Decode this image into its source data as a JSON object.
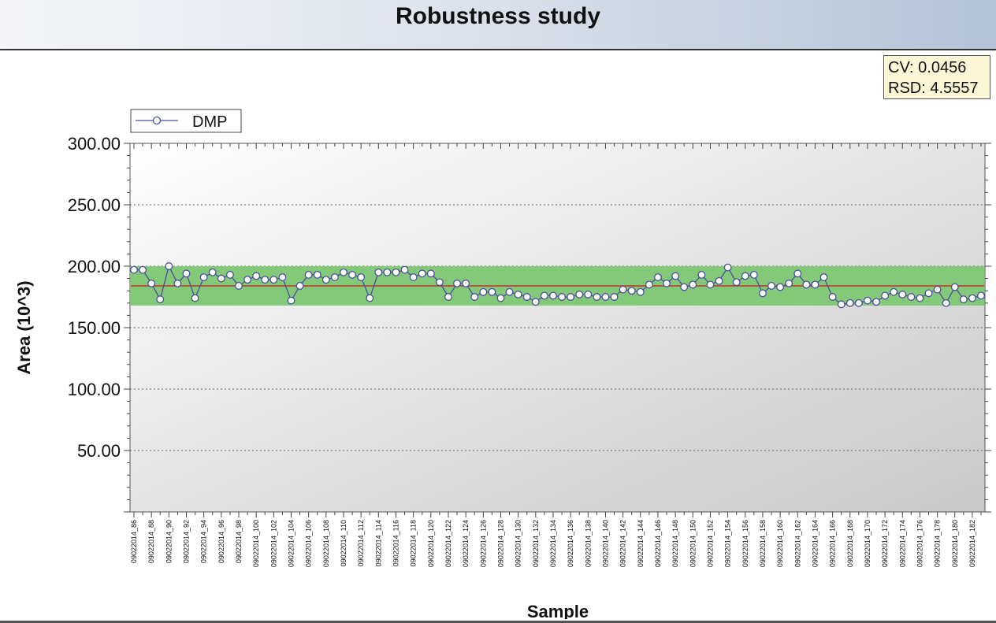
{
  "title": "Robustness study",
  "stats": {
    "cv": "CV: 0.0456",
    "rsd": "RSD: 4.5557"
  },
  "chart_data": {
    "type": "line",
    "title": "Robustness study",
    "xlabel": "Sample",
    "ylabel": "Area (10^3)",
    "ylim": [
      0,
      300
    ],
    "yticks": [
      "50.00",
      "100.00",
      "150.00",
      "200.00",
      "250.00",
      "300.00"
    ],
    "grid": true,
    "legend": "top-left",
    "mean": 184,
    "band": [
      168,
      200
    ],
    "colors": {
      "series": "#4a4f9a",
      "mean_line": "#c0392b",
      "band": "#84c97a",
      "marker_fill": "#ffffff"
    },
    "x_tick_labels": [
      "09022014_86",
      "09022014_88",
      "09022014_90",
      "09022014_92",
      "09022014_94",
      "09022014_96",
      "09022014_98",
      "09022014_100",
      "09022014_102",
      "09022014_104",
      "09022014_106",
      "09022014_108",
      "09022014_110",
      "09022014_112",
      "09022014_114",
      "09022014_116",
      "09022014_118",
      "09022014_120",
      "09022014_122",
      "09022014_124",
      "09022014_126",
      "09022014_128",
      "09022014_130",
      "09022014_132",
      "09022014_134",
      "09022014_136",
      "09022014_138",
      "09022014_140",
      "09022014_142",
      "09022014_144",
      "09022014_146",
      "09022014_148",
      "09022014_150",
      "09022014_152",
      "09022014_154",
      "09022014_156",
      "09022014_158",
      "09022014_160",
      "09022014_162",
      "09022014_164",
      "09022014_166",
      "09022014_168",
      "09022014_170",
      "09022014_172",
      "09022014_174",
      "09022014_176",
      "09022014_178",
      "09022014_180",
      "09022014_182"
    ],
    "series": [
      {
        "name": "DMP",
        "values": [
          197,
          197,
          186,
          173,
          200,
          186,
          194,
          174,
          191,
          195,
          190,
          193,
          184,
          189,
          192,
          189,
          189,
          191,
          172,
          184,
          193,
          193,
          189,
          191,
          195,
          193,
          191,
          174,
          195,
          195,
          195,
          197,
          191,
          194,
          194,
          187,
          175,
          186,
          186,
          175,
          179,
          179,
          174,
          179,
          177,
          175,
          171,
          176,
          176,
          175,
          175,
          177,
          177,
          175,
          175,
          175,
          181,
          180,
          179,
          185,
          191,
          186,
          192,
          183,
          185,
          193,
          185,
          188,
          199,
          187,
          192,
          193,
          178,
          184,
          183,
          186,
          194,
          185,
          185,
          191,
          175,
          169,
          170,
          170,
          172,
          171,
          176,
          179,
          177,
          175,
          174,
          178,
          181,
          170,
          183,
          173,
          174,
          176
        ]
      }
    ]
  }
}
